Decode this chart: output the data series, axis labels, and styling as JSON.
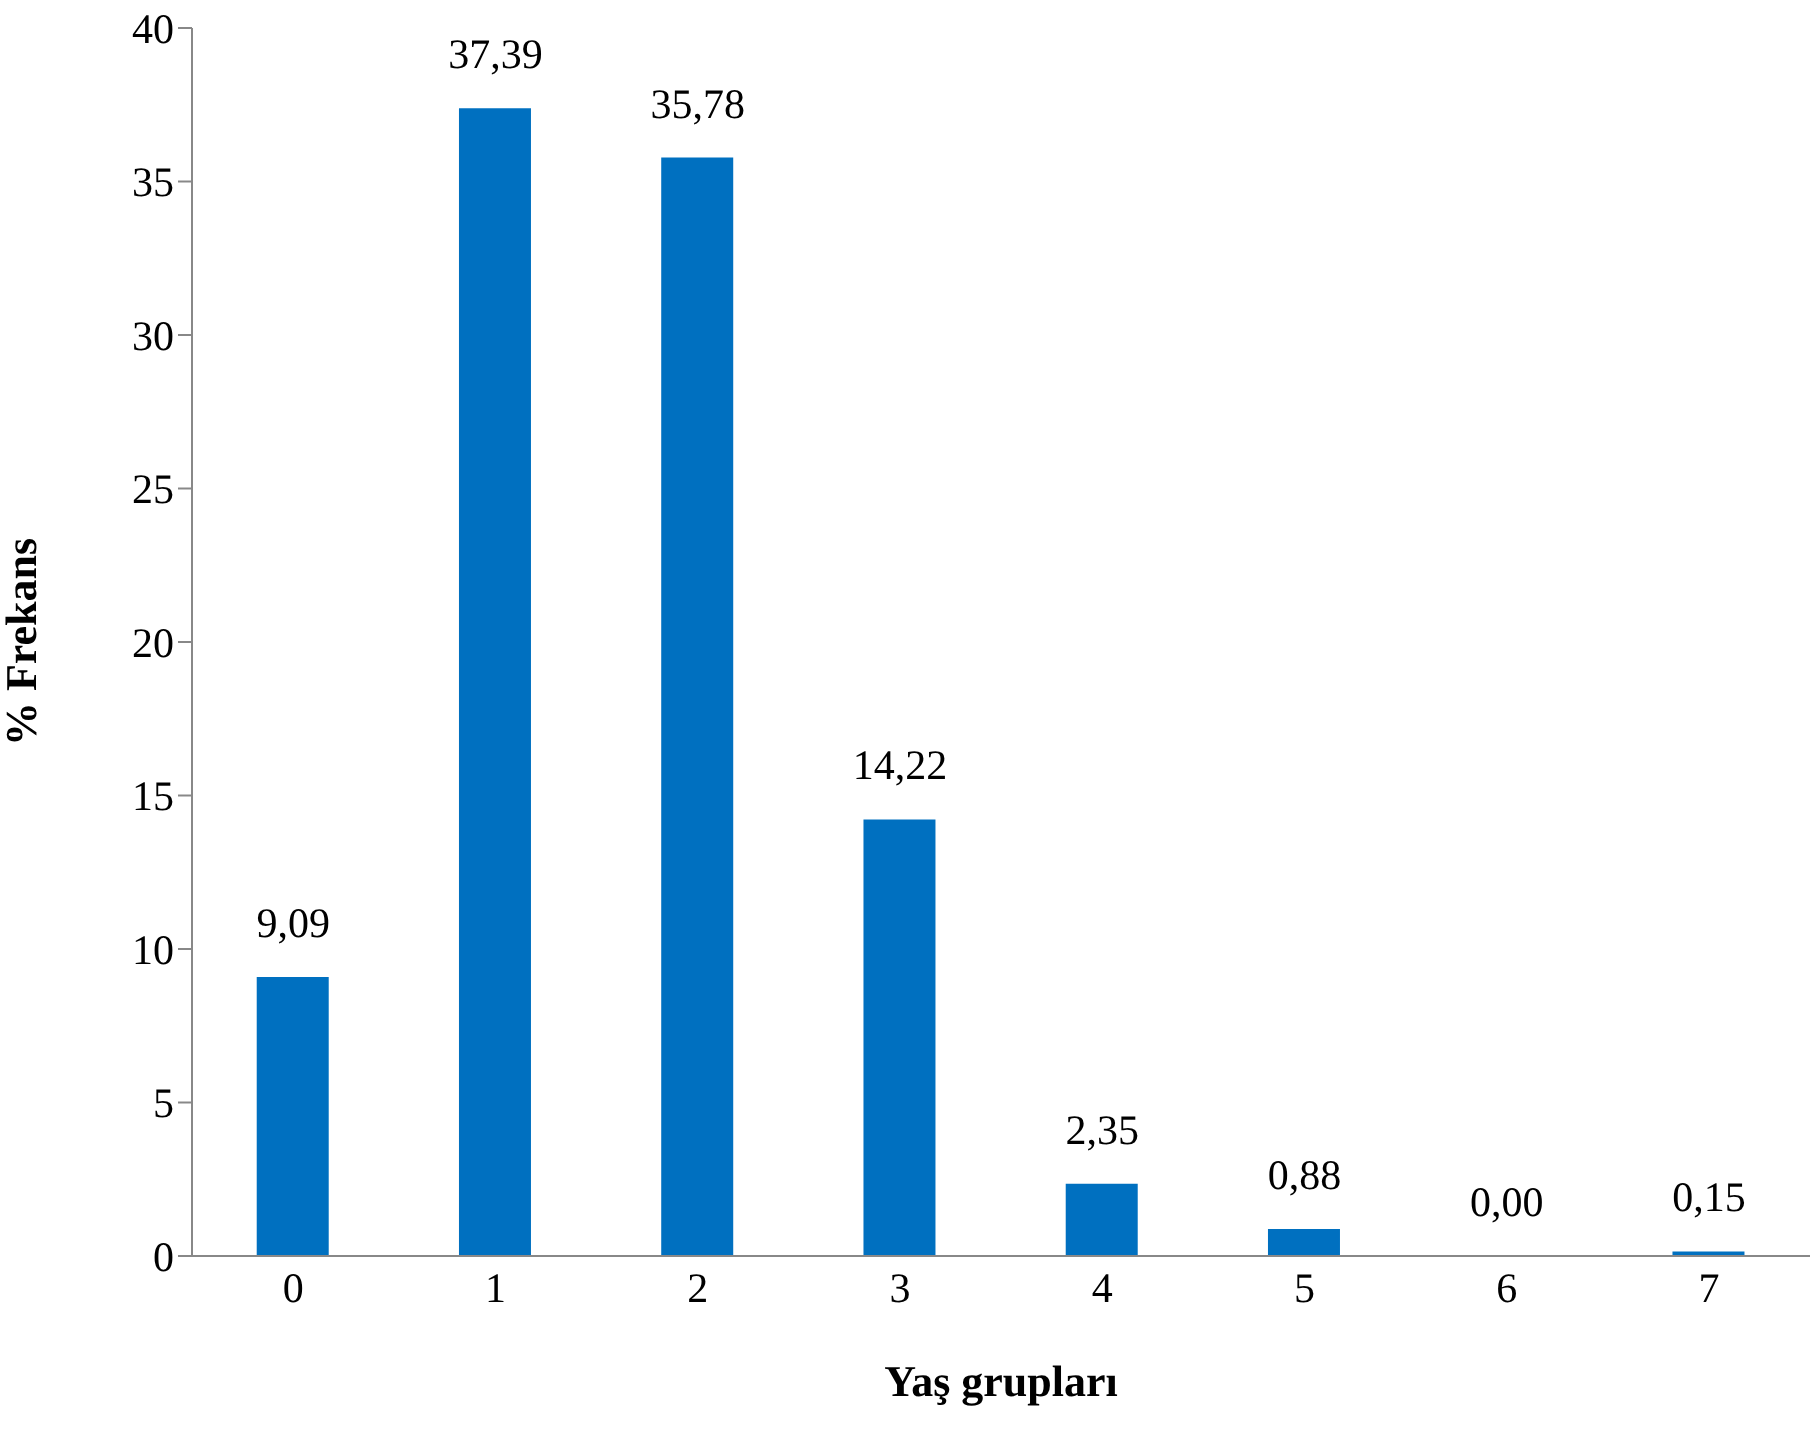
{
  "chart_data": {
    "type": "bar",
    "xlabel": "Yaş grupları",
    "ylabel": "% Frekans",
    "categories": [
      "0",
      "1",
      "2",
      "3",
      "4",
      "5",
      "6",
      "7"
    ],
    "values": [
      9.09,
      37.39,
      35.78,
      14.22,
      2.35,
      0.88,
      0.0,
      0.15
    ],
    "value_labels": [
      "9,09",
      "37,39",
      "35,78",
      "14,22",
      "2,35",
      "0,88",
      "0,00",
      "0,15"
    ],
    "color": "#0070c0",
    "ylim": [
      0,
      40
    ],
    "yticks": [
      0,
      5,
      10,
      15,
      20,
      25,
      30,
      35,
      40
    ],
    "grid": false
  }
}
